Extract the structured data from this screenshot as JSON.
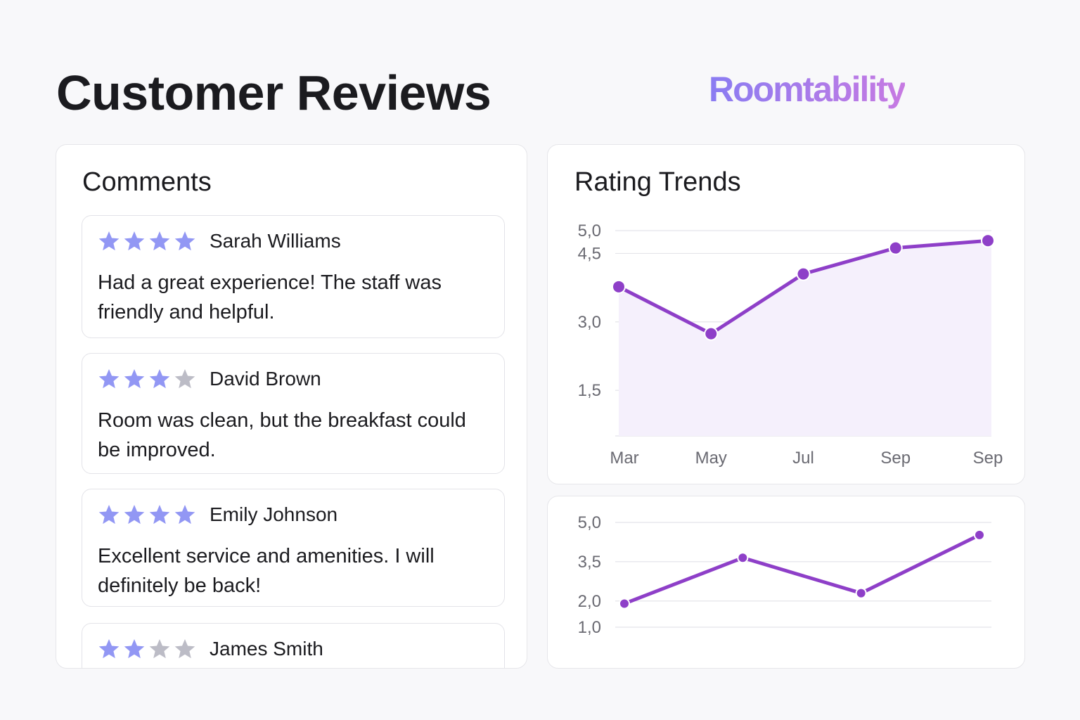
{
  "header": {
    "title": "Customer Reviews",
    "logo": "Roomtability"
  },
  "comments": {
    "title": "Comments",
    "items": [
      {
        "name": "Sarah Williams",
        "rating": 4,
        "text": "Had a great experience! The staff was friendly and helpful."
      },
      {
        "name": "David Brown",
        "rating": 3,
        "text": "Room was clean, but the breakfast could be improved."
      },
      {
        "name": "Emily Johnson",
        "rating": 4,
        "text": "Excellent service and amenities. I will definitely be back!"
      },
      {
        "name": "James Smith",
        "rating": 2
      }
    ]
  },
  "chart_data": [
    {
      "type": "line",
      "title": "Rating Trends",
      "color": "#8e3fc8",
      "area": true,
      "grid": true,
      "categories": [
        "Mar",
        "May",
        "Jul",
        "Sep",
        "Sep"
      ],
      "values": [
        3.77,
        2.74,
        4.05,
        4.62,
        4.78
      ],
      "ylim": [
        0.5,
        5
      ],
      "yticks": [
        {
          "value": 5,
          "label": "5,0"
        },
        {
          "value": 4.5,
          "label": "4,5"
        },
        {
          "value": 3,
          "label": "3,0"
        },
        {
          "value": 1.5,
          "label": "1,5"
        }
      ]
    },
    {
      "type": "line",
      "color": "#8e3fc8",
      "area": false,
      "grid": true,
      "categories": [
        null,
        null,
        null,
        null
      ],
      "values": [
        1.9,
        3.65,
        2.3,
        4.52
      ],
      "ylim": [
        1,
        5
      ],
      "yticks": [
        {
          "value": 5,
          "label": "5,0"
        },
        {
          "value": 3.5,
          "label": "3,5"
        },
        {
          "value": 2,
          "label": "2,0"
        },
        {
          "value": 1,
          "label": "1,0"
        }
      ]
    }
  ]
}
